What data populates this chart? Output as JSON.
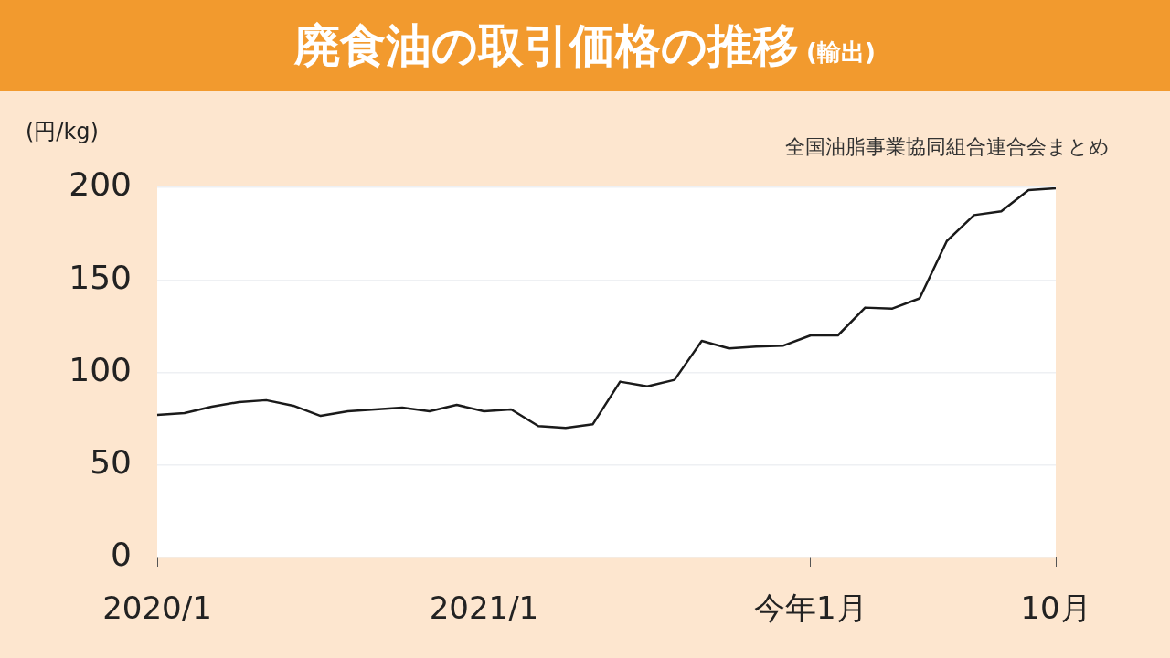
{
  "chart_data": {
    "type": "line",
    "title": "廃食油の取引価格の推移",
    "subtitle": "(輸出)",
    "ylabel": "(円/kg)",
    "annotations": [
      "全国油脂事業協同組合連合会まとめ"
    ],
    "categories": [
      "2020/1",
      null,
      null,
      null,
      null,
      null,
      null,
      null,
      null,
      null,
      null,
      null,
      "2021/1",
      null,
      null,
      null,
      null,
      null,
      null,
      null,
      null,
      null,
      null,
      null,
      "今年1月",
      null,
      null,
      null,
      null,
      null,
      null,
      null,
      null,
      "10月"
    ],
    "series": [
      {
        "color": "#1a1a1a",
        "values": [
          77,
          78,
          81.5,
          84,
          85,
          82,
          76.5,
          79,
          80,
          81,
          79,
          82.5,
          79,
          80,
          71,
          70,
          72,
          95,
          92.5,
          96,
          117,
          113,
          114,
          114.5,
          120,
          120,
          135,
          134.5,
          140,
          171,
          185,
          187,
          198.5,
          199.5
        ]
      }
    ],
    "ylim": [
      0,
      200
    ],
    "yticks": [
      0,
      50,
      100,
      150,
      200
    ],
    "grid": "y",
    "legend": false,
    "marker": "none",
    "line_style": "solid"
  }
}
